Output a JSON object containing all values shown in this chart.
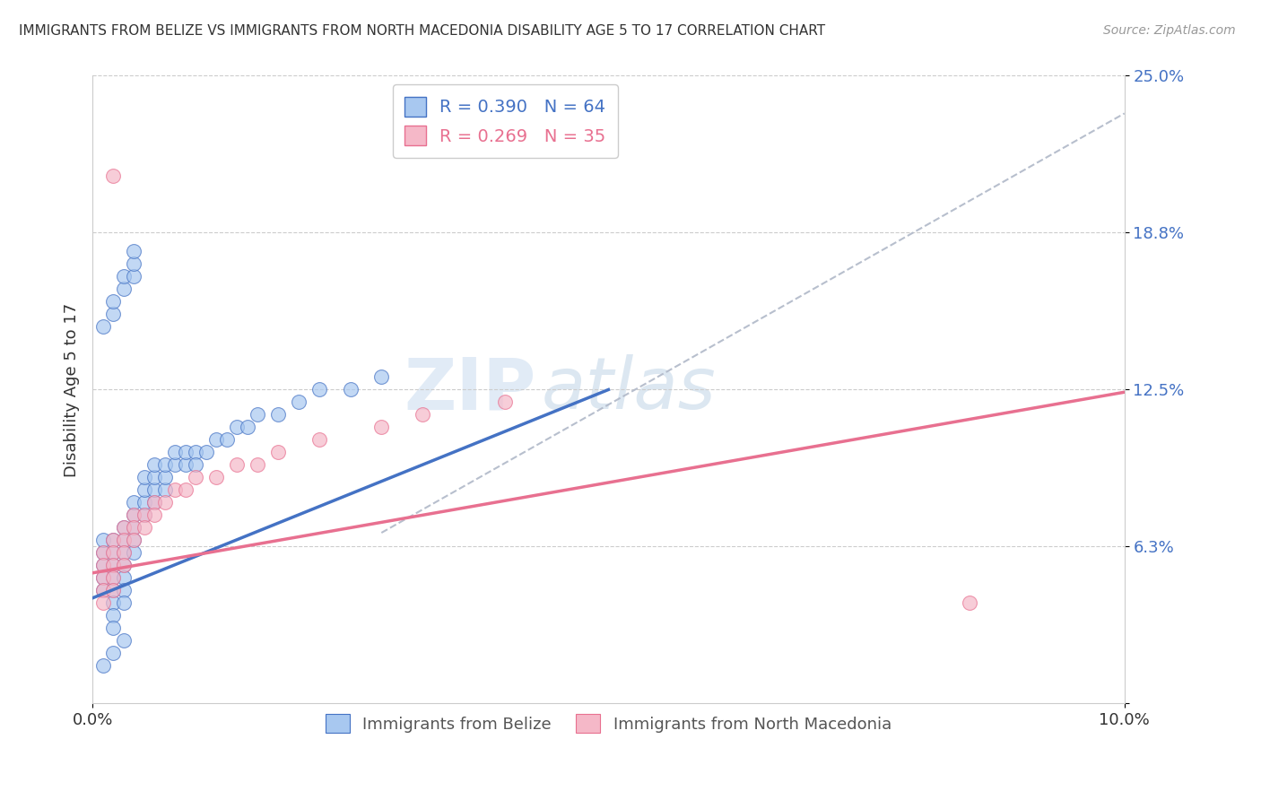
{
  "title": "IMMIGRANTS FROM BELIZE VS IMMIGRANTS FROM NORTH MACEDONIA DISABILITY AGE 5 TO 17 CORRELATION CHART",
  "source": "Source: ZipAtlas.com",
  "ylabel": "Disability Age 5 to 17",
  "xlim": [
    0.0,
    0.1
  ],
  "ylim": [
    0.0,
    0.25
  ],
  "ytick_positions": [
    0.0,
    0.0625,
    0.125,
    0.1875,
    0.25
  ],
  "ytick_labels": [
    "",
    "6.3%",
    "12.5%",
    "18.8%",
    "25.0%"
  ],
  "belize_R": 0.39,
  "belize_N": 64,
  "macedonia_R": 0.269,
  "macedonia_N": 35,
  "belize_color": "#a8c8f0",
  "macedonia_color": "#f5b8c8",
  "belize_line_color": "#4472c4",
  "macedonia_line_color": "#e87090",
  "dash_line_color": "#b0b8c8",
  "watermark_zip": "ZIP",
  "watermark_atlas": "atlas",
  "legend_label_belize": "Immigrants from Belize",
  "legend_label_macedonia": "Immigrants from North Macedonia",
  "belize_x": [
    0.001,
    0.001,
    0.001,
    0.001,
    0.001,
    0.002,
    0.002,
    0.002,
    0.002,
    0.002,
    0.002,
    0.002,
    0.003,
    0.003,
    0.003,
    0.003,
    0.003,
    0.003,
    0.003,
    0.004,
    0.004,
    0.004,
    0.004,
    0.004,
    0.005,
    0.005,
    0.005,
    0.005,
    0.006,
    0.006,
    0.006,
    0.006,
    0.007,
    0.007,
    0.007,
    0.008,
    0.008,
    0.009,
    0.009,
    0.01,
    0.01,
    0.011,
    0.012,
    0.013,
    0.014,
    0.015,
    0.016,
    0.018,
    0.02,
    0.022,
    0.025,
    0.028,
    0.001,
    0.002,
    0.002,
    0.003,
    0.003,
    0.004,
    0.004,
    0.004,
    0.002,
    0.003,
    0.002,
    0.001
  ],
  "belize_y": [
    0.055,
    0.06,
    0.065,
    0.05,
    0.045,
    0.06,
    0.065,
    0.055,
    0.05,
    0.045,
    0.04,
    0.035,
    0.065,
    0.07,
    0.06,
    0.055,
    0.05,
    0.045,
    0.04,
    0.07,
    0.065,
    0.06,
    0.075,
    0.08,
    0.075,
    0.08,
    0.085,
    0.09,
    0.08,
    0.085,
    0.09,
    0.095,
    0.085,
    0.09,
    0.095,
    0.095,
    0.1,
    0.095,
    0.1,
    0.1,
    0.095,
    0.1,
    0.105,
    0.105,
    0.11,
    0.11,
    0.115,
    0.115,
    0.12,
    0.125,
    0.125,
    0.13,
    0.15,
    0.155,
    0.16,
    0.165,
    0.17,
    0.17,
    0.175,
    0.18,
    0.03,
    0.025,
    0.02,
    0.015
  ],
  "macedonia_x": [
    0.001,
    0.001,
    0.001,
    0.001,
    0.001,
    0.002,
    0.002,
    0.002,
    0.002,
    0.002,
    0.003,
    0.003,
    0.003,
    0.003,
    0.004,
    0.004,
    0.004,
    0.005,
    0.005,
    0.006,
    0.006,
    0.007,
    0.008,
    0.009,
    0.01,
    0.012,
    0.014,
    0.016,
    0.018,
    0.022,
    0.028,
    0.032,
    0.04,
    0.085,
    0.002
  ],
  "macedonia_y": [
    0.06,
    0.055,
    0.05,
    0.045,
    0.04,
    0.065,
    0.06,
    0.055,
    0.05,
    0.045,
    0.07,
    0.065,
    0.06,
    0.055,
    0.075,
    0.07,
    0.065,
    0.075,
    0.07,
    0.08,
    0.075,
    0.08,
    0.085,
    0.085,
    0.09,
    0.09,
    0.095,
    0.095,
    0.1,
    0.105,
    0.11,
    0.115,
    0.12,
    0.04,
    0.21
  ],
  "belize_line_x": [
    0.0,
    0.05
  ],
  "belize_line_y": [
    0.042,
    0.125
  ],
  "macedonia_line_x": [
    0.0,
    0.1
  ],
  "macedonia_line_y": [
    0.052,
    0.124
  ],
  "dash_line_x": [
    0.028,
    0.1
  ],
  "dash_line_y": [
    0.068,
    0.235
  ]
}
